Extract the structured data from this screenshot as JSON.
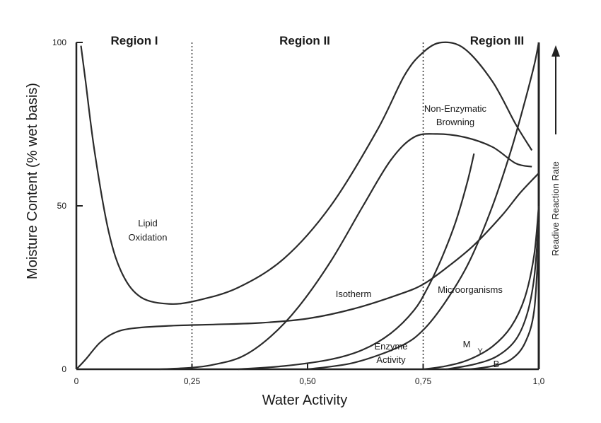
{
  "chart_data": {
    "type": "line",
    "title": "",
    "xlabel": "Water Activity",
    "ylabel": "Moisture Content (% wet basis)",
    "right_axis_label": "Readive Reaction Rate",
    "xlim": [
      0,
      1.0
    ],
    "ylim": [
      0,
      100
    ],
    "x_tick_labels": [
      "0",
      "0,25",
      "0,50",
      "0,75",
      "1,0"
    ],
    "x_tick_values": [
      0,
      0.25,
      0.5,
      0.75,
      1.0
    ],
    "y_tick_labels": [
      "0",
      "50",
      "100"
    ],
    "y_tick_values": [
      0,
      50,
      100
    ],
    "grid": false,
    "regions": [
      {
        "name": "Region I",
        "x_from": 0,
        "x_to": 0.25
      },
      {
        "name": "Region II",
        "x_from": 0.25,
        "x_to": 0.75
      },
      {
        "name": "Region III",
        "x_from": 0.75,
        "x_to": 1.0
      }
    ],
    "region_dividers": [
      0.25,
      0.75
    ],
    "series": [
      {
        "name": "Lipid Oxidation",
        "label": "Lipid\nOxidation",
        "points": [
          [
            0.01,
            99
          ],
          [
            0.02,
            88
          ],
          [
            0.04,
            66
          ],
          [
            0.07,
            42
          ],
          [
            0.1,
            29
          ],
          [
            0.14,
            22
          ],
          [
            0.2,
            20
          ],
          [
            0.26,
            21
          ],
          [
            0.35,
            25
          ],
          [
            0.45,
            34
          ],
          [
            0.55,
            50
          ],
          [
            0.65,
            73
          ],
          [
            0.71,
            90
          ],
          [
            0.75,
            97
          ],
          [
            0.79,
            100
          ],
          [
            0.84,
            98
          ],
          [
            0.9,
            88
          ],
          [
            0.95,
            75
          ],
          [
            0.985,
            67
          ]
        ]
      },
      {
        "name": "Isotherm",
        "label": "Isotherm",
        "points": [
          [
            0,
            0
          ],
          [
            0.02,
            3
          ],
          [
            0.05,
            8
          ],
          [
            0.08,
            11
          ],
          [
            0.12,
            12.5
          ],
          [
            0.2,
            13.3
          ],
          [
            0.3,
            13.7
          ],
          [
            0.4,
            14.2
          ],
          [
            0.5,
            15.5
          ],
          [
            0.6,
            18.5
          ],
          [
            0.7,
            23
          ],
          [
            0.75,
            26
          ],
          [
            0.8,
            31
          ],
          [
            0.86,
            38
          ],
          [
            0.92,
            47
          ],
          [
            0.96,
            54
          ],
          [
            1.0,
            60
          ]
        ]
      },
      {
        "name": "Non-Enzymatic Browning",
        "label": "Non-Enzymatic\nBrowning",
        "points": [
          [
            0.18,
            0
          ],
          [
            0.25,
            0.5
          ],
          [
            0.3,
            1.5
          ],
          [
            0.36,
            4
          ],
          [
            0.42,
            10
          ],
          [
            0.48,
            19
          ],
          [
            0.55,
            33
          ],
          [
            0.62,
            50
          ],
          [
            0.68,
            64
          ],
          [
            0.73,
            71
          ],
          [
            0.78,
            72
          ],
          [
            0.84,
            71
          ],
          [
            0.9,
            68
          ],
          [
            0.95,
            63
          ],
          [
            0.985,
            62
          ]
        ]
      },
      {
        "name": "Enzyme Activity",
        "label": "Enzyme\nActivity",
        "points": [
          [
            0.35,
            0
          ],
          [
            0.45,
            1
          ],
          [
            0.55,
            3
          ],
          [
            0.62,
            6
          ],
          [
            0.68,
            11
          ],
          [
            0.73,
            18
          ],
          [
            0.76,
            25
          ],
          [
            0.79,
            34
          ],
          [
            0.82,
            45
          ],
          [
            0.845,
            57
          ],
          [
            0.86,
            66
          ]
        ]
      },
      {
        "name": "Microorganisms",
        "label": "Microorganisms",
        "points": [
          [
            0.5,
            0
          ],
          [
            0.6,
            2
          ],
          [
            0.7,
            7
          ],
          [
            0.75,
            12
          ],
          [
            0.8,
            21
          ],
          [
            0.85,
            33
          ],
          [
            0.9,
            50
          ],
          [
            0.94,
            67
          ],
          [
            0.97,
            82
          ],
          [
            0.99,
            93
          ],
          [
            1.0,
            100
          ]
        ]
      },
      {
        "name": "M",
        "label": "M",
        "points": [
          [
            0.75,
            0
          ],
          [
            0.8,
            1
          ],
          [
            0.85,
            3
          ],
          [
            0.9,
            7
          ],
          [
            0.94,
            13
          ],
          [
            0.97,
            22
          ],
          [
            0.99,
            35
          ],
          [
            1.0,
            50
          ]
        ]
      },
      {
        "name": "Y",
        "label": "Y",
        "points": [
          [
            0.8,
            0
          ],
          [
            0.86,
            1.5
          ],
          [
            0.91,
            4
          ],
          [
            0.95,
            9
          ],
          [
            0.975,
            17
          ],
          [
            0.99,
            28
          ],
          [
            1.0,
            45
          ]
        ]
      },
      {
        "name": "B",
        "label": "B",
        "points": [
          [
            0.85,
            0
          ],
          [
            0.9,
            1
          ],
          [
            0.94,
            3
          ],
          [
            0.97,
            8
          ],
          [
            0.99,
            18
          ],
          [
            1.0,
            40
          ]
        ]
      }
    ]
  }
}
